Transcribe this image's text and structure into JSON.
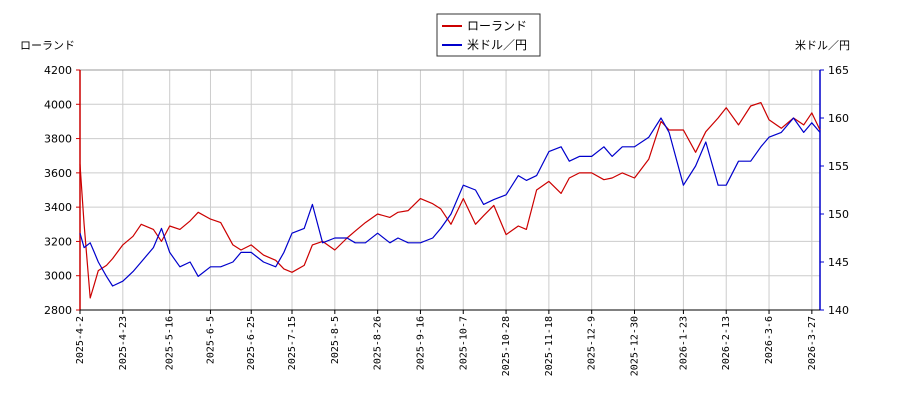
{
  "chart_data": {
    "type": "line",
    "left_axis_label": "ローランド",
    "right_axis_label": "米ドル／円",
    "colors": {
      "left_series": "#cc0000",
      "right_series": "#0000cc",
      "grid": "#cccccc",
      "right_axis": "#0000cc",
      "left_axis": "#cc0000"
    },
    "legend": {
      "placement": "top-center",
      "entries": [
        "ローランド",
        "米ドル／円"
      ]
    },
    "grid": true,
    "x_range": [
      "2025-04-02",
      "2026-03-31"
    ],
    "left_ylim": [
      2800,
      4200
    ],
    "right_ylim": [
      140,
      165
    ],
    "left_ticks": [
      "2800",
      "3000",
      "3200",
      "3400",
      "3600",
      "3800",
      "4000",
      "4200"
    ],
    "right_ticks": [
      "140",
      "145",
      "150",
      "155",
      "160",
      "165"
    ],
    "x_tick_dates": [
      "2025-04-02",
      "2025-04-23",
      "2025-05-16",
      "2025-06-05",
      "2025-06-25",
      "2025-07-15",
      "2025-08-05",
      "2025-08-26",
      "2025-09-16",
      "2025-10-07",
      "2025-10-28",
      "2025-11-18",
      "2025-12-09",
      "2025-12-30",
      "2026-01-23",
      "2026-02-13",
      "2026-03-06",
      "2026-03-27"
    ],
    "x_tick_labels": [
      "2025-4-2",
      "2025-4-23",
      "2025-5-16",
      "2025-6-5",
      "2025-6-25",
      "2025-7-15",
      "2025-8-5",
      "2025-8-26",
      "2025-9-16",
      "2025-10-7",
      "2025-10-28",
      "2025-11-18",
      "2025-12-9",
      "2025-12-30",
      "2026-1-23",
      "2026-2-13",
      "2026-3-6",
      "2026-3-27"
    ],
    "series": [
      {
        "name": "ローランド",
        "axis": "left",
        "x": [
          "2025-04-02",
          "2025-04-04",
          "2025-04-07",
          "2025-04-09",
          "2025-04-11",
          "2025-04-15",
          "2025-04-18",
          "2025-04-23",
          "2025-04-28",
          "2025-05-02",
          "2025-05-08",
          "2025-05-12",
          "2025-05-16",
          "2025-05-21",
          "2025-05-26",
          "2025-05-30",
          "2025-06-05",
          "2025-06-10",
          "2025-06-16",
          "2025-06-20",
          "2025-06-25",
          "2025-07-01",
          "2025-07-07",
          "2025-07-11",
          "2025-07-15",
          "2025-07-21",
          "2025-07-25",
          "2025-07-30",
          "2025-08-05",
          "2025-08-11",
          "2025-08-15",
          "2025-08-20",
          "2025-08-26",
          "2025-09-01",
          "2025-09-05",
          "2025-09-10",
          "2025-09-16",
          "2025-09-22",
          "2025-09-26",
          "2025-10-01",
          "2025-10-07",
          "2025-10-13",
          "2025-10-17",
          "2025-10-22",
          "2025-10-28",
          "2025-11-03",
          "2025-11-07",
          "2025-11-12",
          "2025-11-18",
          "2025-11-24",
          "2025-11-28",
          "2025-12-03",
          "2025-12-09",
          "2025-12-15",
          "2025-12-19",
          "2025-12-24",
          "2025-12-30",
          "2026-01-06",
          "2026-01-12",
          "2026-01-16",
          "2026-01-23",
          "2026-01-29",
          "2026-02-03",
          "2026-02-09",
          "2026-02-13",
          "2026-02-19",
          "2026-02-25",
          "2026-03-02",
          "2026-03-06",
          "2026-03-12",
          "2026-03-18",
          "2026-03-23",
          "2026-03-27",
          "2026-03-31"
        ],
        "values": [
          3650,
          3300,
          2870,
          2950,
          3030,
          3060,
          3100,
          3180,
          3230,
          3300,
          3270,
          3200,
          3290,
          3270,
          3320,
          3370,
          3330,
          3310,
          3180,
          3150,
          3180,
          3120,
          3090,
          3040,
          3020,
          3060,
          3180,
          3200,
          3150,
          3220,
          3260,
          3310,
          3360,
          3340,
          3370,
          3380,
          3450,
          3420,
          3390,
          3300,
          3450,
          3300,
          3350,
          3410,
          3240,
          3290,
          3270,
          3500,
          3550,
          3480,
          3570,
          3600,
          3600,
          3560,
          3570,
          3600,
          3570,
          3680,
          3900,
          3850,
          3850,
          3720,
          3840,
          3920,
          3980,
          3880,
          3990,
          4010,
          3910,
          3860,
          3920,
          3880,
          3950,
          3850
        ]
      },
      {
        "name": "米ドル／円",
        "axis": "right",
        "x": [
          "2025-04-02",
          "2025-04-04",
          "2025-04-07",
          "2025-04-09",
          "2025-04-11",
          "2025-04-15",
          "2025-04-18",
          "2025-04-23",
          "2025-04-28",
          "2025-05-02",
          "2025-05-08",
          "2025-05-12",
          "2025-05-16",
          "2025-05-21",
          "2025-05-26",
          "2025-05-30",
          "2025-06-05",
          "2025-06-10",
          "2025-06-16",
          "2025-06-20",
          "2025-06-25",
          "2025-07-01",
          "2025-07-07",
          "2025-07-11",
          "2025-07-15",
          "2025-07-21",
          "2025-07-25",
          "2025-07-30",
          "2025-08-05",
          "2025-08-11",
          "2025-08-15",
          "2025-08-20",
          "2025-08-26",
          "2025-09-01",
          "2025-09-05",
          "2025-09-10",
          "2025-09-16",
          "2025-09-22",
          "2025-09-26",
          "2025-10-01",
          "2025-10-07",
          "2025-10-13",
          "2025-10-17",
          "2025-10-22",
          "2025-10-28",
          "2025-11-03",
          "2025-11-07",
          "2025-11-12",
          "2025-11-18",
          "2025-11-24",
          "2025-11-28",
          "2025-12-03",
          "2025-12-09",
          "2025-12-15",
          "2025-12-19",
          "2025-12-24",
          "2025-12-30",
          "2026-01-06",
          "2026-01-12",
          "2026-01-16",
          "2026-01-23",
          "2026-01-29",
          "2026-02-03",
          "2026-02-09",
          "2026-02-13",
          "2026-02-19",
          "2026-02-25",
          "2026-03-02",
          "2026-03-06",
          "2026-03-12",
          "2026-03-18",
          "2026-03-23",
          "2026-03-27",
          "2026-03-31"
        ],
        "values": [
          148.0,
          146.5,
          147.0,
          146.0,
          145.0,
          143.5,
          142.5,
          143.0,
          144.0,
          145.0,
          146.5,
          148.5,
          146.0,
          144.5,
          145.0,
          143.5,
          144.5,
          144.5,
          145.0,
          146.0,
          146.0,
          145.0,
          144.5,
          146.0,
          148.0,
          148.5,
          151.0,
          147.0,
          147.5,
          147.5,
          147.0,
          147.0,
          148.0,
          147.0,
          147.5,
          147.0,
          147.0,
          147.5,
          148.5,
          150.0,
          153.0,
          152.5,
          151.0,
          151.5,
          152.0,
          154.0,
          153.5,
          154.0,
          156.5,
          157.0,
          155.5,
          156.0,
          156.0,
          157.0,
          156.0,
          157.0,
          157.0,
          158.0,
          160.0,
          158.5,
          153.0,
          155.0,
          157.5,
          153.0,
          153.0,
          155.5,
          155.5,
          157.0,
          158.0,
          158.5,
          160.0,
          158.5,
          159.5,
          158.5
        ]
      }
    ]
  }
}
